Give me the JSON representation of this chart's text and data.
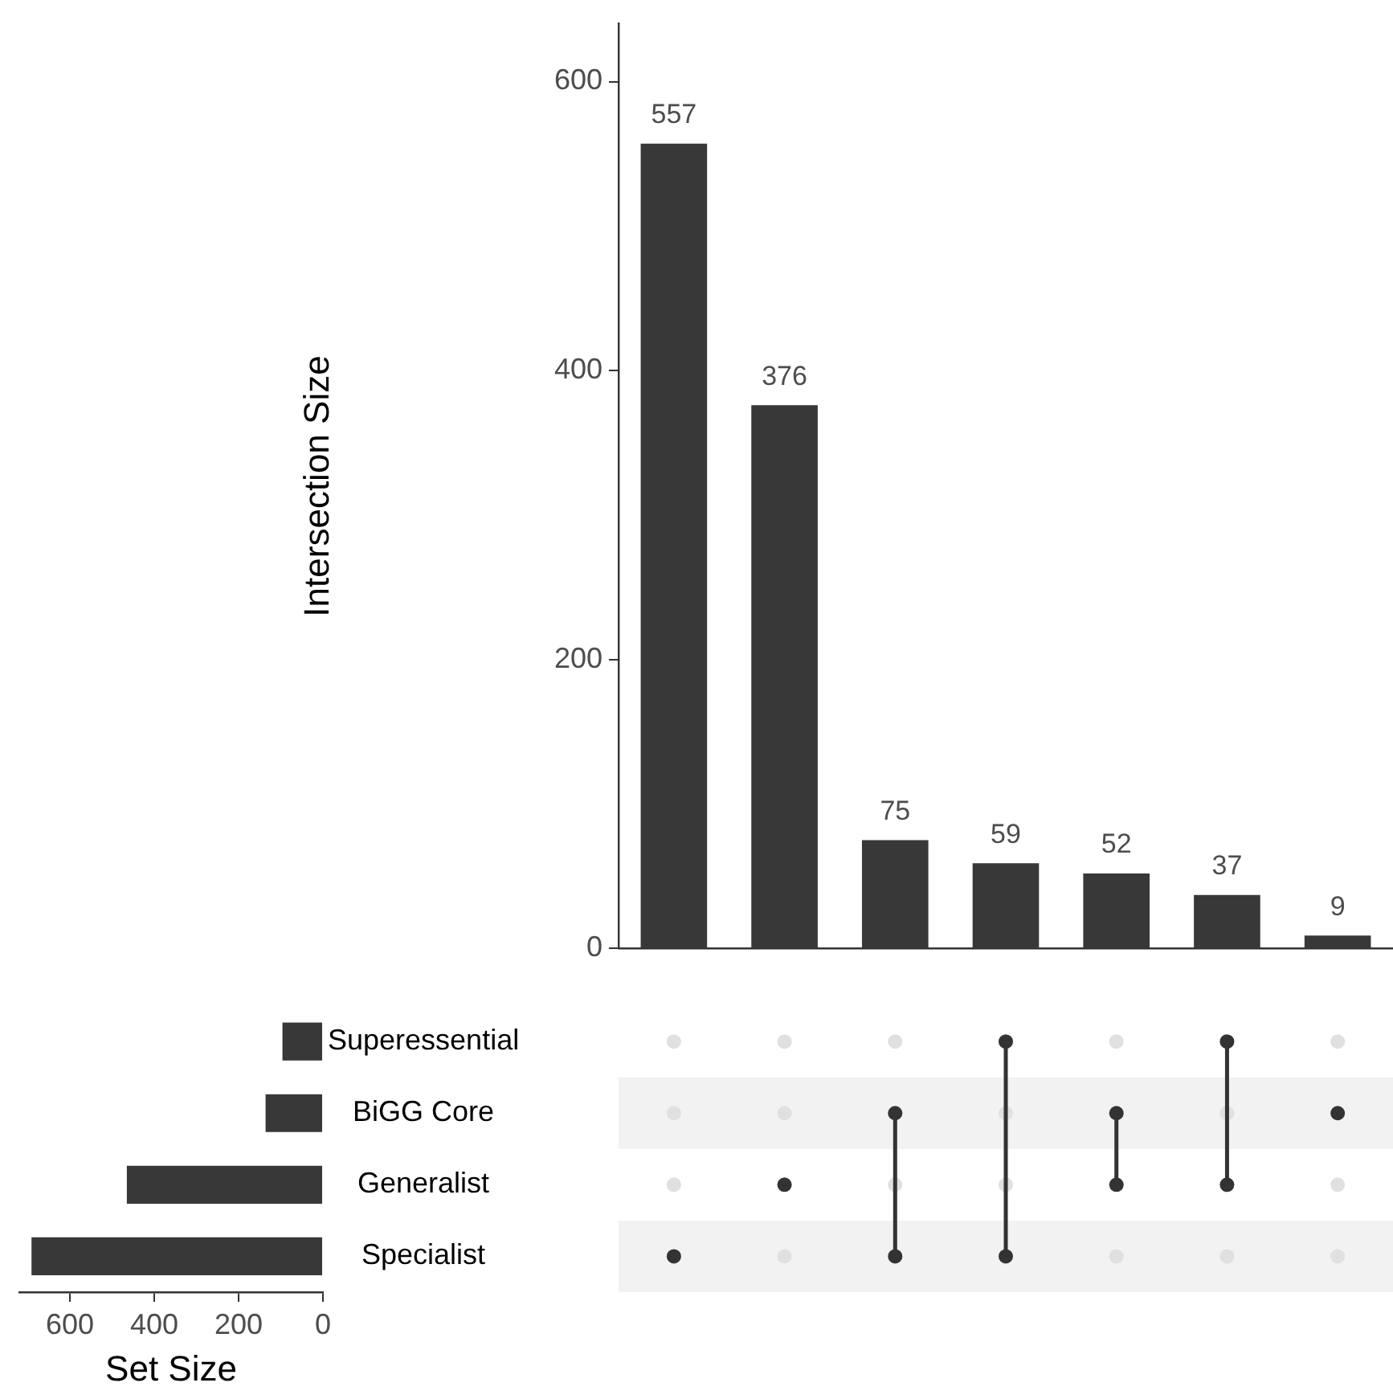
{
  "chart_data": [
    {
      "type": "bar",
      "ylabel": "Intersection Size",
      "categories": [
        null,
        null,
        null,
        null,
        null,
        null,
        null
      ],
      "values": [
        557,
        376,
        75,
        59,
        52,
        37,
        9
      ],
      "color": "#383838",
      "ylim": [
        0,
        640
      ],
      "yticks": [
        0,
        200,
        400,
        600
      ],
      "data_labels": true,
      "grid": false,
      "legend": false,
      "tick_labels": "y"
    },
    {
      "type": "bar",
      "orientation": "horizontal",
      "xlabel": "Set Size",
      "categories": [
        "Superessential",
        "BiGG Core",
        "Generalist",
        "Specialist"
      ],
      "values": [
        96,
        136,
        465,
        691
      ],
      "color": "#383838",
      "xlim": [
        720,
        0
      ],
      "xticks": [
        600,
        400,
        200,
        0
      ],
      "grid": false,
      "legend": false
    }
  ]
}
